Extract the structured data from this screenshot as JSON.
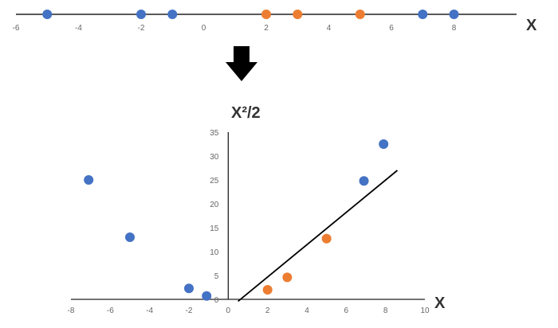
{
  "colors": {
    "blue": "#4472C4",
    "orange": "#ED7D31",
    "axis": "#222222",
    "arrow": "#000000"
  },
  "arrow_icon": "down-arrow-icon",
  "top": {
    "axis_label": "X",
    "xlim": [
      -6,
      10
    ],
    "ticks": [
      "-6",
      "-4",
      "-2",
      "0",
      "2",
      "4",
      "6",
      "8"
    ],
    "tick_values": [
      -6,
      -4,
      -2,
      0,
      2,
      4,
      6,
      8
    ],
    "points": [
      {
        "x": -5,
        "class": "blue"
      },
      {
        "x": -2,
        "class": "blue"
      },
      {
        "x": -1,
        "class": "blue"
      },
      {
        "x": 2,
        "class": "orange"
      },
      {
        "x": 3,
        "class": "orange"
      },
      {
        "x": 5,
        "class": "orange"
      },
      {
        "x": 7,
        "class": "blue"
      },
      {
        "x": 8,
        "class": "blue"
      }
    ]
  },
  "chart_data": {
    "type": "scatter",
    "xlabel": "X",
    "ylabel": "X²/2",
    "xlim": [
      -8,
      10
    ],
    "ylim": [
      0,
      35
    ],
    "x_ticks": [
      "-8",
      "-6",
      "-4",
      "-2",
      "0",
      "2",
      "4",
      "6",
      "8",
      "10"
    ],
    "x_tick_values": [
      -8,
      -6,
      -4,
      -2,
      0,
      2,
      4,
      6,
      8,
      10
    ],
    "y_ticks": [
      "0",
      "5",
      "10",
      "15",
      "20",
      "25",
      "30",
      "35"
    ],
    "y_tick_values": [
      0,
      5,
      10,
      15,
      20,
      25,
      30,
      35
    ],
    "points": [
      {
        "x": -7.1,
        "y": 25,
        "class": "blue"
      },
      {
        "x": -5,
        "y": 13,
        "class": "blue"
      },
      {
        "x": -2,
        "y": 2.3,
        "class": "blue"
      },
      {
        "x": -1.1,
        "y": 0.7,
        "class": "blue"
      },
      {
        "x": 2,
        "y": 2,
        "class": "orange"
      },
      {
        "x": 3,
        "y": 4.6,
        "class": "orange"
      },
      {
        "x": 5,
        "y": 12.7,
        "class": "orange"
      },
      {
        "x": 6.9,
        "y": 24.8,
        "class": "blue"
      },
      {
        "x": 7.9,
        "y": 32.5,
        "class": "blue"
      }
    ],
    "separator_line": [
      {
        "x": 0.5,
        "y": -0.4
      },
      {
        "x": 8.6,
        "y": 27
      }
    ],
    "grid": false
  }
}
